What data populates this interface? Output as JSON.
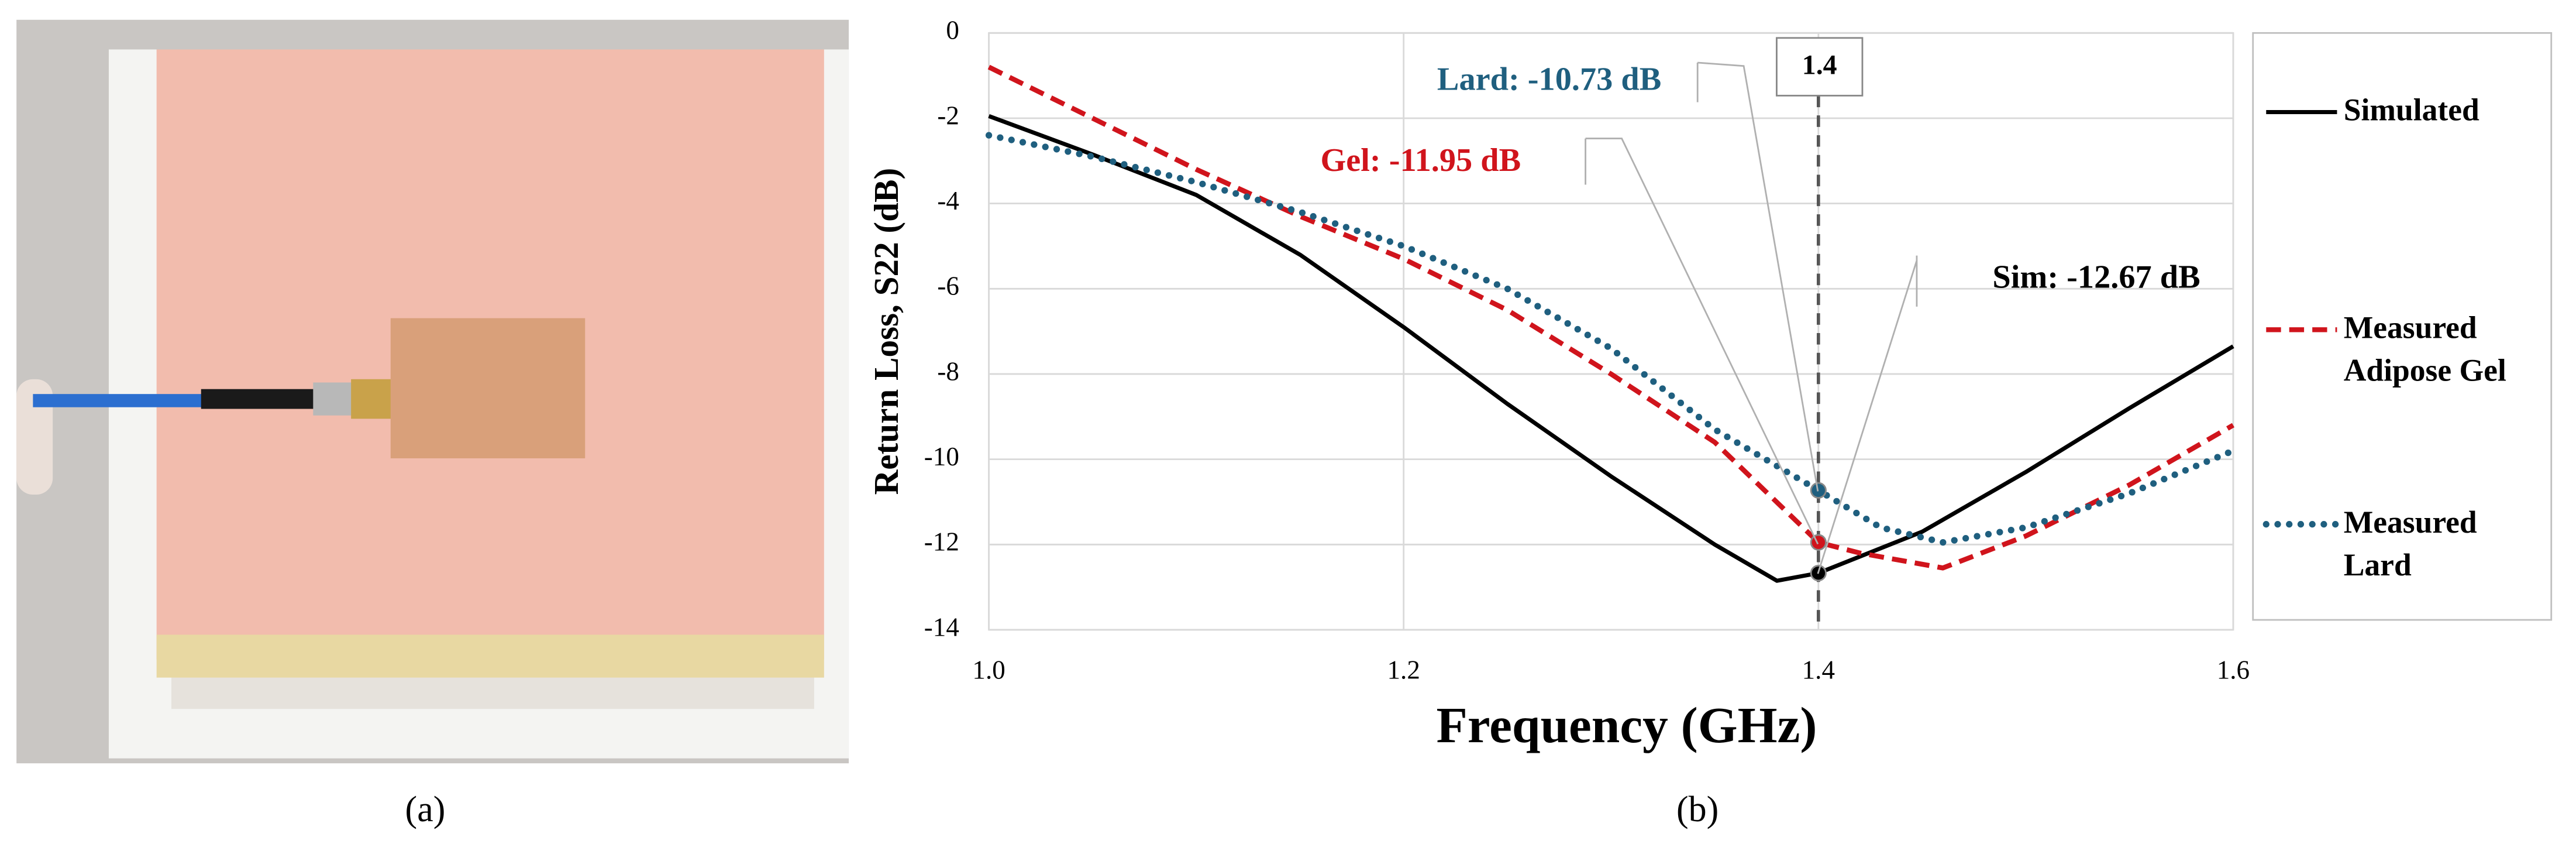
{
  "captions": [
    "(a)",
    "(b)"
  ],
  "chart_data": {
    "type": "line",
    "x_label": "Frequency (GHz)",
    "y_label": "Return Loss, S22 (dB)",
    "xlim": [
      1.0,
      1.6
    ],
    "ylim": [
      -14,
      0
    ],
    "xticks": [
      {
        "value": 1.0,
        "label": "1.0"
      },
      {
        "value": 1.2,
        "label": "1.2"
      },
      1.4,
      {
        "value": 1.6,
        "label": "1.6"
      }
    ],
    "yticks": [
      0,
      -2,
      -4,
      -6,
      -8,
      -10,
      -12,
      -14
    ],
    "grid": true,
    "marker_line": 1.4,
    "series": [
      {
        "name": "Simulated",
        "color": "#000000",
        "style": "solid",
        "x": [
          1.0,
          1.05,
          1.1,
          1.15,
          1.2,
          1.25,
          1.3,
          1.35,
          1.38,
          1.4,
          1.45,
          1.5,
          1.55,
          1.6
        ],
        "values": [
          -1.95,
          -2.85,
          -3.8,
          -5.2,
          -6.9,
          -8.7,
          -10.4,
          -12.0,
          -12.85,
          -12.67,
          -11.7,
          -10.3,
          -8.8,
          -7.35
        ]
      },
      {
        "name": "Measured Adipose Gel",
        "color": "#d0141c",
        "style": "dashed",
        "x": [
          1.0,
          1.05,
          1.1,
          1.15,
          1.2,
          1.25,
          1.3,
          1.35,
          1.4,
          1.42,
          1.46,
          1.5,
          1.55,
          1.6
        ],
        "values": [
          -0.8,
          -2.0,
          -3.2,
          -4.3,
          -5.3,
          -6.5,
          -8.0,
          -9.6,
          -11.95,
          -12.2,
          -12.55,
          -11.8,
          -10.6,
          -9.2
        ]
      },
      {
        "name": "Measured Lard",
        "color": "#1f5f7f",
        "style": "dotted",
        "x": [
          1.0,
          1.05,
          1.1,
          1.15,
          1.2,
          1.25,
          1.3,
          1.35,
          1.4,
          1.43,
          1.46,
          1.5,
          1.55,
          1.6
        ],
        "values": [
          -2.4,
          -2.9,
          -3.5,
          -4.2,
          -5.0,
          -6.0,
          -7.4,
          -9.3,
          -10.73,
          -11.6,
          -11.95,
          -11.6,
          -10.8,
          -9.8
        ]
      }
    ],
    "annotations": [
      {
        "text": "Lard: -10.73 dB",
        "color": "#1f5f7f"
      },
      {
        "text": "Gel: -11.95 dB",
        "color": "#d0141c"
      },
      {
        "text": "Sim: -12.67 dB",
        "color": "#000000"
      }
    ]
  }
}
